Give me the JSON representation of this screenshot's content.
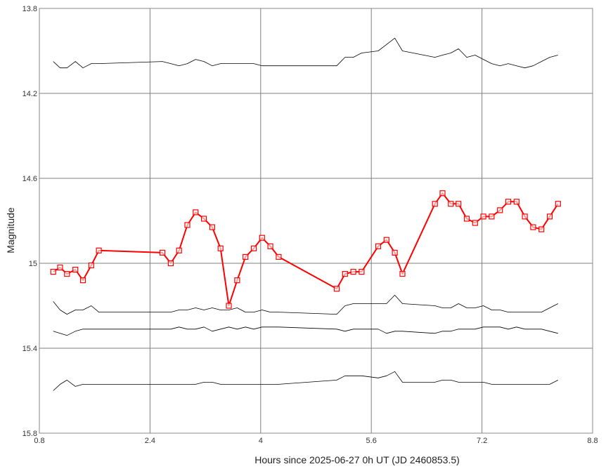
{
  "chart_data": {
    "type": "line",
    "xlabel": "Hours since 2025-06-27 0h UT (JD 2460853.5)",
    "ylabel": "Magnitude",
    "xlim": [
      0.8,
      8.8
    ],
    "ylim": [
      13.8,
      15.8
    ],
    "y_inverted": true,
    "grid": true,
    "xticks": [
      "0.8",
      "2.4",
      "4",
      "5.6",
      "7.2",
      "8.8"
    ],
    "yticks": [
      "13.8",
      "14.2",
      "14.6",
      "15",
      "15.4",
      "15.8"
    ],
    "series": [
      {
        "color": "#ff0000",
        "marker": "square",
        "x": [
          1.0,
          1.1,
          1.2,
          1.32,
          1.43,
          1.55,
          1.66,
          2.58,
          2.7,
          2.82,
          2.94,
          3.06,
          3.18,
          3.3,
          3.42,
          3.54,
          3.66,
          3.78,
          3.9,
          4.02,
          4.14,
          4.26,
          5.1,
          5.22,
          5.34,
          5.46,
          5.7,
          5.82,
          5.94,
          6.05,
          6.52,
          6.63,
          6.75,
          6.86,
          6.98,
          7.1,
          7.22,
          7.34,
          7.46,
          7.58,
          7.7,
          7.82,
          7.94,
          8.06,
          8.18,
          8.3
        ],
        "values": [
          15.04,
          15.02,
          15.05,
          15.03,
          15.08,
          15.01,
          14.94,
          14.95,
          15.0,
          14.94,
          14.82,
          14.76,
          14.79,
          14.83,
          14.93,
          15.2,
          15.08,
          14.97,
          14.93,
          14.88,
          14.92,
          14.97,
          15.12,
          15.05,
          15.04,
          15.04,
          14.92,
          14.89,
          14.95,
          15.05,
          14.72,
          14.67,
          14.72,
          14.72,
          14.79,
          14.81,
          14.78,
          14.78,
          14.75,
          14.71,
          14.71,
          14.78,
          14.83,
          14.84,
          14.78,
          14.72
        ]
      },
      {
        "color": "#000000",
        "x": [
          1.0,
          1.1,
          1.2,
          1.32,
          1.43,
          1.55,
          1.66,
          2.58,
          2.7,
          2.82,
          2.94,
          3.06,
          3.18,
          3.3,
          3.42,
          3.54,
          3.66,
          3.78,
          3.9,
          4.02,
          4.14,
          4.26,
          5.1,
          5.22,
          5.34,
          5.46,
          5.7,
          5.82,
          5.94,
          6.05,
          6.52,
          6.63,
          6.75,
          6.86,
          6.98,
          7.1,
          7.22,
          7.34,
          7.46,
          7.58,
          7.7,
          7.82,
          7.94,
          8.06,
          8.18,
          8.3
        ],
        "values": [
          14.05,
          14.08,
          14.08,
          14.05,
          14.08,
          14.06,
          14.06,
          14.05,
          14.06,
          14.07,
          14.06,
          14.04,
          14.05,
          14.07,
          14.06,
          14.06,
          14.06,
          14.06,
          14.06,
          14.07,
          14.07,
          14.07,
          14.07,
          14.03,
          14.03,
          14.01,
          14.0,
          13.97,
          13.94,
          14.0,
          14.03,
          14.02,
          14.01,
          13.99,
          14.03,
          14.02,
          14.04,
          14.06,
          14.07,
          14.06,
          14.07,
          14.08,
          14.07,
          14.05,
          14.03,
          14.02
        ]
      },
      {
        "color": "#000000",
        "x": [
          1.0,
          1.1,
          1.2,
          1.32,
          1.43,
          1.55,
          1.66,
          2.58,
          2.7,
          2.82,
          2.94,
          3.06,
          3.18,
          3.3,
          3.42,
          3.54,
          3.66,
          3.78,
          3.9,
          4.02,
          4.14,
          4.26,
          5.1,
          5.22,
          5.34,
          5.46,
          5.7,
          5.82,
          5.94,
          6.05,
          6.52,
          6.63,
          6.75,
          6.86,
          6.98,
          7.1,
          7.22,
          7.34,
          7.46,
          7.58,
          7.7,
          7.82,
          7.94,
          8.06,
          8.18,
          8.3
        ],
        "values": [
          15.18,
          15.22,
          15.24,
          15.22,
          15.22,
          15.2,
          15.23,
          15.23,
          15.23,
          15.22,
          15.22,
          15.21,
          15.22,
          15.21,
          15.22,
          15.22,
          15.21,
          15.23,
          15.23,
          15.22,
          15.23,
          15.23,
          15.24,
          15.2,
          15.19,
          15.19,
          15.19,
          15.19,
          15.15,
          15.19,
          15.2,
          15.21,
          15.21,
          15.19,
          15.21,
          15.21,
          15.2,
          15.22,
          15.22,
          15.23,
          15.23,
          15.23,
          15.23,
          15.23,
          15.21,
          15.19
        ]
      },
      {
        "color": "#000000",
        "x": [
          1.0,
          1.1,
          1.2,
          1.32,
          1.43,
          1.55,
          1.66,
          2.58,
          2.7,
          2.82,
          2.94,
          3.06,
          3.18,
          3.3,
          3.42,
          3.54,
          3.66,
          3.78,
          3.9,
          4.02,
          4.14,
          4.26,
          5.1,
          5.22,
          5.34,
          5.46,
          5.7,
          5.82,
          5.94,
          6.05,
          6.52,
          6.63,
          6.75,
          6.86,
          6.98,
          7.1,
          7.22,
          7.34,
          7.46,
          7.58,
          7.7,
          7.82,
          7.94,
          8.06,
          8.18,
          8.3
        ],
        "values": [
          15.32,
          15.33,
          15.34,
          15.32,
          15.31,
          15.31,
          15.31,
          15.31,
          15.31,
          15.3,
          15.31,
          15.31,
          15.3,
          15.32,
          15.31,
          15.3,
          15.31,
          15.3,
          15.31,
          15.3,
          15.3,
          15.3,
          15.31,
          15.32,
          15.31,
          15.31,
          15.31,
          15.33,
          15.32,
          15.32,
          15.33,
          15.32,
          15.32,
          15.31,
          15.31,
          15.31,
          15.3,
          15.3,
          15.3,
          15.31,
          15.3,
          15.31,
          15.31,
          15.31,
          15.32,
          15.33
        ]
      },
      {
        "color": "#000000",
        "x": [
          1.0,
          1.1,
          1.2,
          1.32,
          1.43,
          1.55,
          1.66,
          2.58,
          2.7,
          2.82,
          2.94,
          3.06,
          3.18,
          3.3,
          3.42,
          3.54,
          3.66,
          3.78,
          3.9,
          4.02,
          4.14,
          4.26,
          5.1,
          5.22,
          5.34,
          5.46,
          5.7,
          5.82,
          5.94,
          6.05,
          6.52,
          6.63,
          6.75,
          6.86,
          6.98,
          7.1,
          7.22,
          7.34,
          7.46,
          7.58,
          7.7,
          7.82,
          7.94,
          8.06,
          8.18,
          8.3
        ],
        "values": [
          15.6,
          15.57,
          15.55,
          15.58,
          15.57,
          15.57,
          15.57,
          15.57,
          15.57,
          15.57,
          15.57,
          15.57,
          15.56,
          15.56,
          15.57,
          15.57,
          15.57,
          15.57,
          15.57,
          15.57,
          15.57,
          15.57,
          15.55,
          15.53,
          15.53,
          15.53,
          15.54,
          15.53,
          15.51,
          15.56,
          15.56,
          15.55,
          15.55,
          15.56,
          15.56,
          15.56,
          15.56,
          15.57,
          15.57,
          15.57,
          15.57,
          15.57,
          15.57,
          15.57,
          15.57,
          15.55
        ]
      }
    ]
  }
}
